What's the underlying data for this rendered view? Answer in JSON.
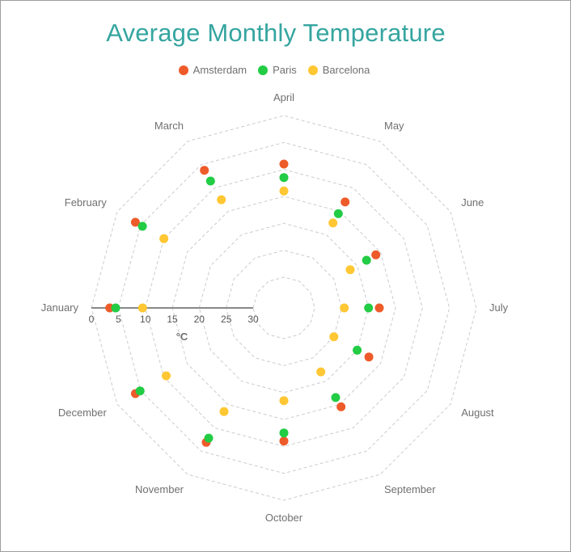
{
  "chart_data": {
    "type": "polar-scatter",
    "title": "Average Monthly Temperature",
    "legend_position": "top",
    "radial_axis": {
      "unit": "°C",
      "range": [
        0,
        30
      ],
      "ticks": [
        "0",
        "5",
        "10",
        "15",
        "20",
        "25",
        "30"
      ],
      "inverted": true
    },
    "grid": true,
    "categories": [
      "January",
      "February",
      "March",
      "April",
      "May",
      "June",
      "July",
      "August",
      "September",
      "October",
      "November",
      "December"
    ],
    "series": [
      {
        "name": "Amsterdam",
        "color": "#ee5b2a",
        "values": [
          3.4,
          3.9,
          6.2,
          9.0,
          13.0,
          16.0,
          18.0,
          17.5,
          14.5,
          11.0,
          6.9,
          3.9
        ]
      },
      {
        "name": "Paris",
        "color": "#22cc44",
        "values": [
          4.5,
          5.4,
          8.5,
          11.5,
          15.5,
          18.0,
          20.0,
          20.0,
          16.5,
          12.5,
          7.8,
          4.9
        ]
      },
      {
        "name": "Barcelona",
        "color": "#ffc733",
        "values": [
          9.5,
          10.0,
          12.5,
          14.0,
          17.5,
          21.5,
          24.5,
          25.0,
          22.0,
          18.5,
          13.5,
          10.5
        ]
      }
    ]
  }
}
